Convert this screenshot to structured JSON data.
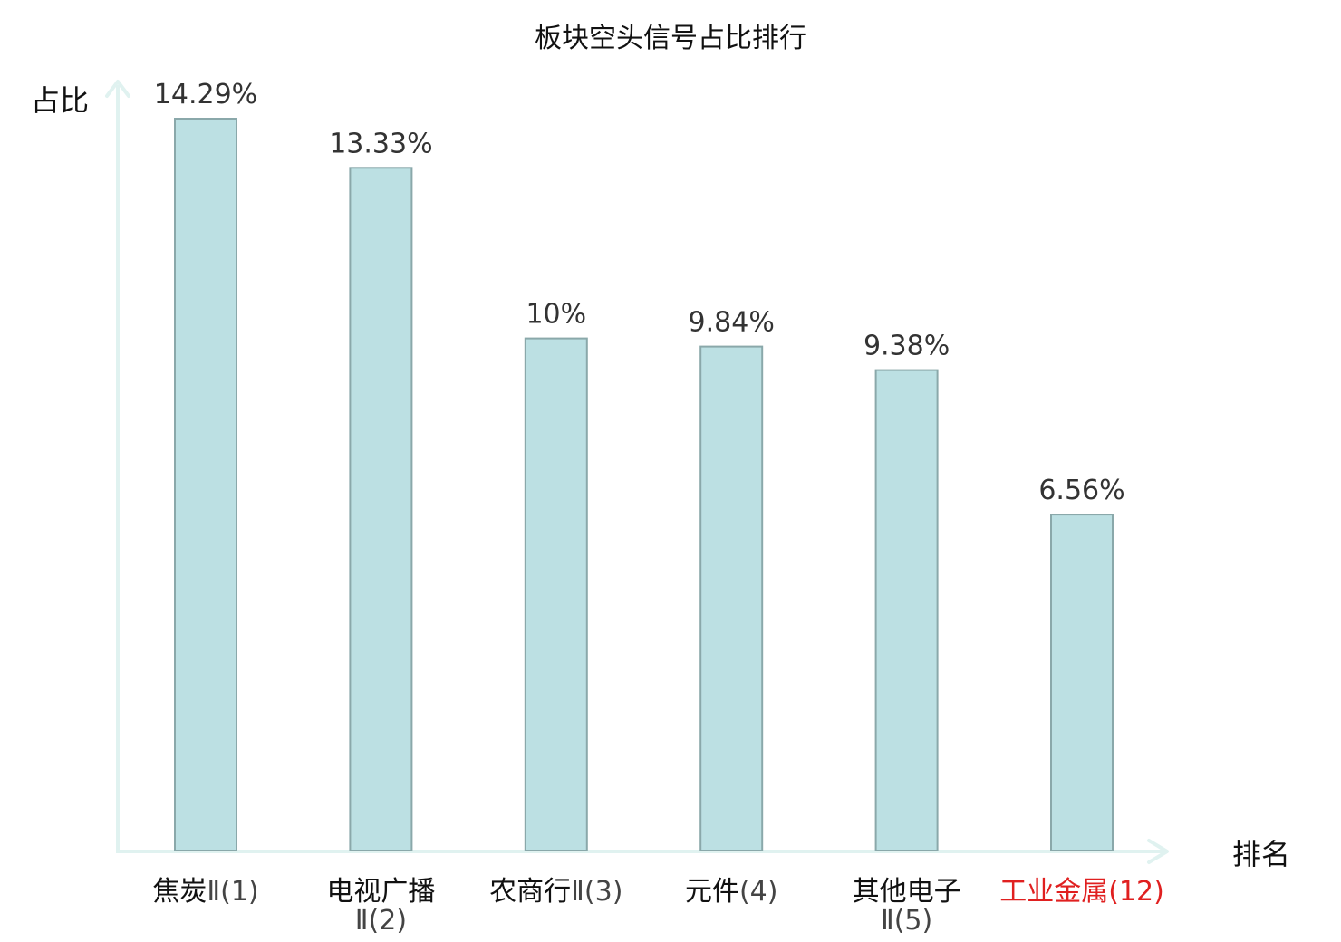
{
  "chart_data": {
    "type": "bar",
    "title": "板块空头信号占比排行",
    "xlabel": "排名",
    "ylabel": "占比",
    "ylim": [
      0,
      14.29
    ],
    "grid": false,
    "legend": "none",
    "categories": [
      {
        "lines": [
          "焦炭",
          "Ⅱ(1)"
        ],
        "rank_on_new_line": false
      },
      {
        "lines": [
          "电视广播",
          "Ⅱ(2)"
        ],
        "rank_on_new_line": true
      },
      {
        "lines": [
          "农商行",
          "Ⅱ(3)"
        ],
        "rank_on_new_line": false
      },
      {
        "lines": [
          "元件",
          "(4)"
        ],
        "rank_on_new_line": false
      },
      {
        "lines": [
          "其他电子",
          "Ⅱ(5)"
        ],
        "rank_on_new_line": true
      },
      {
        "lines": [
          "工业金属",
          "(12)"
        ],
        "rank_on_new_line": false
      }
    ],
    "values": [
      14.29,
      13.33,
      10,
      9.84,
      9.38,
      6.56
    ],
    "value_labels": [
      "14.29%",
      "13.33%",
      "10%",
      "9.84%",
      "9.38%",
      "6.56%"
    ],
    "highlight_index": 5,
    "colors": {
      "bar_fill": "#bce0e3",
      "bar_stroke": "#8aa8aa",
      "axis": "#e0f2f0",
      "highlight_text": "#e02020"
    }
  }
}
